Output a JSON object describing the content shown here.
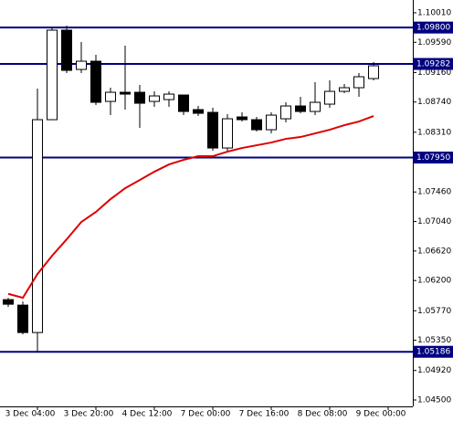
{
  "chart_data": {
    "type": "candlestick",
    "categories": [
      null,
      null,
      "3 Dec 04:00",
      null,
      null,
      null,
      "3 Dec 20:00",
      null,
      null,
      null,
      "4 Dec 12:00",
      null,
      null,
      null,
      "7 Dec 00:00",
      null,
      null,
      null,
      "7 Dec 16:00",
      null,
      null,
      null,
      "8 Dec 08:00",
      null,
      null,
      null,
      "9 Dec 00:00"
    ],
    "open": [
      1.05928,
      1.0585,
      1.0546,
      1.08489,
      1.09763,
      1.09204,
      1.09321,
      1.08749,
      1.08879,
      1.08879,
      1.08749,
      1.08775,
      1.0884,
      1.08632,
      1.08593,
      1.08086,
      1.08528,
      1.08489,
      1.08346,
      1.08502,
      1.08684,
      1.08606,
      1.0871,
      1.08892,
      1.08944,
      1.09074,
      null
    ],
    "high": [
      1.05954,
      1.05902,
      1.08931,
      1.09802,
      1.09828,
      1.09594,
      1.09412,
      1.08944,
      1.09542,
      1.08983,
      1.08892,
      1.08892,
      1.0884,
      1.08684,
      1.08658,
      1.08567,
      1.08593,
      1.08528,
      1.08593,
      1.08736,
      1.08814,
      1.09022,
      1.09048,
      1.08996,
      1.09152,
      1.09308,
      null
    ],
    "low": [
      1.05824,
      1.05434,
      1.05174,
      1.08489,
      1.09152,
      1.09152,
      1.08697,
      1.08554,
      1.08632,
      1.08372,
      1.08671,
      1.08671,
      1.08554,
      1.08541,
      1.08047,
      1.08047,
      1.08463,
      1.0832,
      1.08294,
      1.0845,
      1.0858,
      1.08554,
      1.08658,
      1.08866,
      1.08814,
      1.09048,
      null
    ],
    "close": [
      1.05863,
      1.0546,
      1.08489,
      1.09763,
      1.09191,
      1.09321,
      1.08736,
      1.08879,
      1.08853,
      1.08723,
      1.08827,
      1.08853,
      1.08606,
      1.0858,
      1.08086,
      1.08502,
      1.08489,
      1.08346,
      1.08554,
      1.08684,
      1.08606,
      1.08736,
      1.08892,
      1.08944,
      1.091,
      1.09256,
      null
    ],
    "up_color": "#ffffff",
    "down_color": "#000000",
    "ma": {
      "color": "#dd0000",
      "values": [
        1.06011,
        1.05954,
        1.06292,
        1.06552,
        1.06786,
        1.07033,
        1.07176,
        1.07358,
        1.07514,
        1.07631,
        1.07748,
        1.07852,
        1.07917,
        1.07969,
        1.07969,
        1.08034,
        1.08086,
        1.08125,
        1.08164,
        1.08216,
        1.08242,
        1.08294,
        1.08346,
        1.08411,
        1.08463,
        1.08541,
        null
      ]
    },
    "ylim": [
      1.04409,
      1.10192
    ],
    "yticks": [
      {
        "value": 1.1001,
        "label": "1.10010"
      },
      {
        "value": 1.0959,
        "label": "1.09590"
      },
      {
        "value": 1.0916,
        "label": "1.09160"
      },
      {
        "value": 1.0874,
        "label": "1.08740"
      },
      {
        "value": 1.0831,
        "label": "1.08310"
      },
      {
        "value": 1.0746,
        "label": "1.07460"
      },
      {
        "value": 1.0704,
        "label": "1.07040"
      },
      {
        "value": 1.0662,
        "label": "1.06620"
      },
      {
        "value": 1.062,
        "label": "1.06200"
      },
      {
        "value": 1.0577,
        "label": "1.05770"
      },
      {
        "value": 1.0535,
        "label": "1.05350"
      },
      {
        "value": 1.0492,
        "label": "1.04920"
      },
      {
        "value": 1.045,
        "label": "1.04500"
      }
    ],
    "levels": [
      {
        "value": 1.098,
        "label": "1.09800"
      },
      {
        "value": 1.09282,
        "label": "1.09282"
      },
      {
        "value": 1.0795,
        "label": "1.07950"
      },
      {
        "value": 1.05186,
        "label": "1.05186"
      }
    ],
    "level_color": "#000080"
  }
}
